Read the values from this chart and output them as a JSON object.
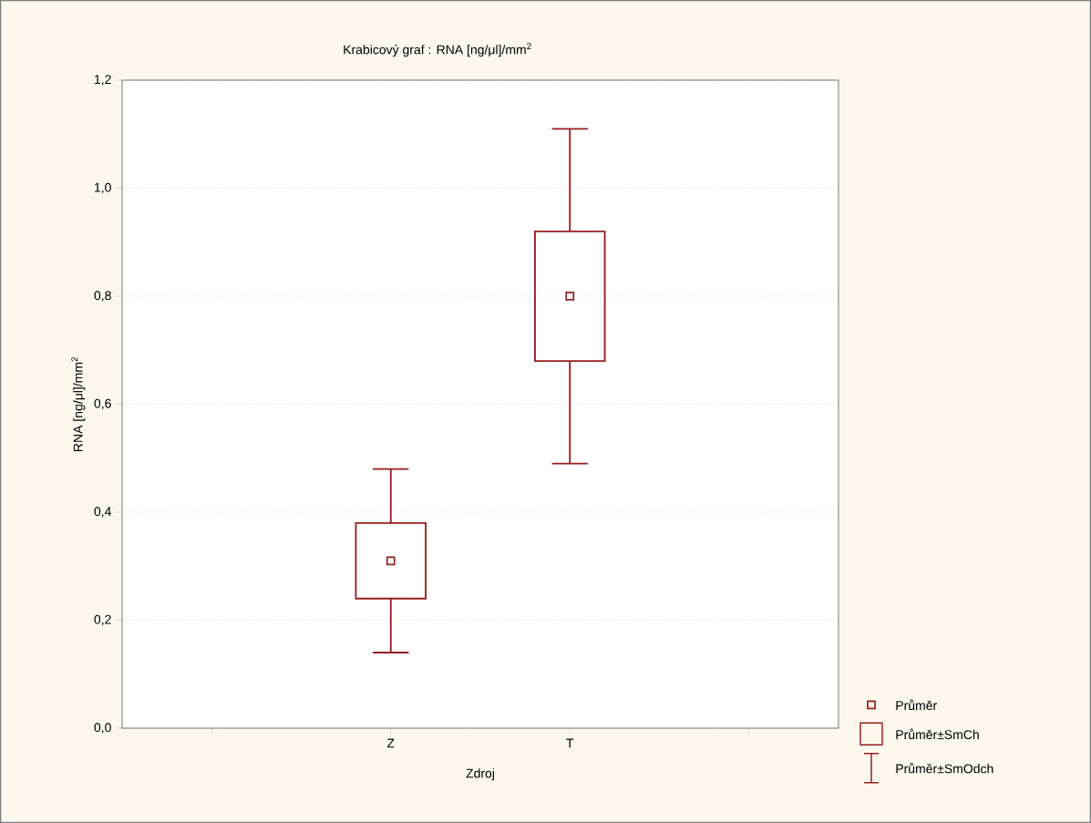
{
  "chart_data": {
    "type": "box",
    "title": "Krabicový  graf :   RNA [ng/μl]/mm$^{2}$",
    "xlabel": "Zdroj",
    "ylabel": "RNA [ng/μl]/mm$^{2}$",
    "categories": [
      "Z",
      "T"
    ],
    "color": "#981e1e",
    "boxes": [
      {
        "low": 0.14,
        "q1": 0.24,
        "median": 0.31,
        "q3": 0.38,
        "high": 0.48
      },
      {
        "low": 0.49,
        "q1": 0.68,
        "median": 0.8,
        "q3": 0.92,
        "high": 1.11
      }
    ],
    "ylim": [
      0,
      1.2
    ],
    "yticks": [
      {
        "value": 0,
        "label": "0,0"
      },
      {
        "value": 0.2,
        "label": "0,2"
      },
      {
        "value": 0.4,
        "label": "0,4"
      },
      {
        "value": 0.6,
        "label": "0,6"
      },
      {
        "value": 0.8,
        "label": "0,8"
      },
      {
        "value": 1.0,
        "label": "1,0"
      },
      {
        "value": 1.2,
        "label": "1,2"
      }
    ],
    "grid": "y",
    "annotations": [
      "Průměr",
      "Průměr±SmCh",
      "Průměr±SmOdch"
    ]
  }
}
